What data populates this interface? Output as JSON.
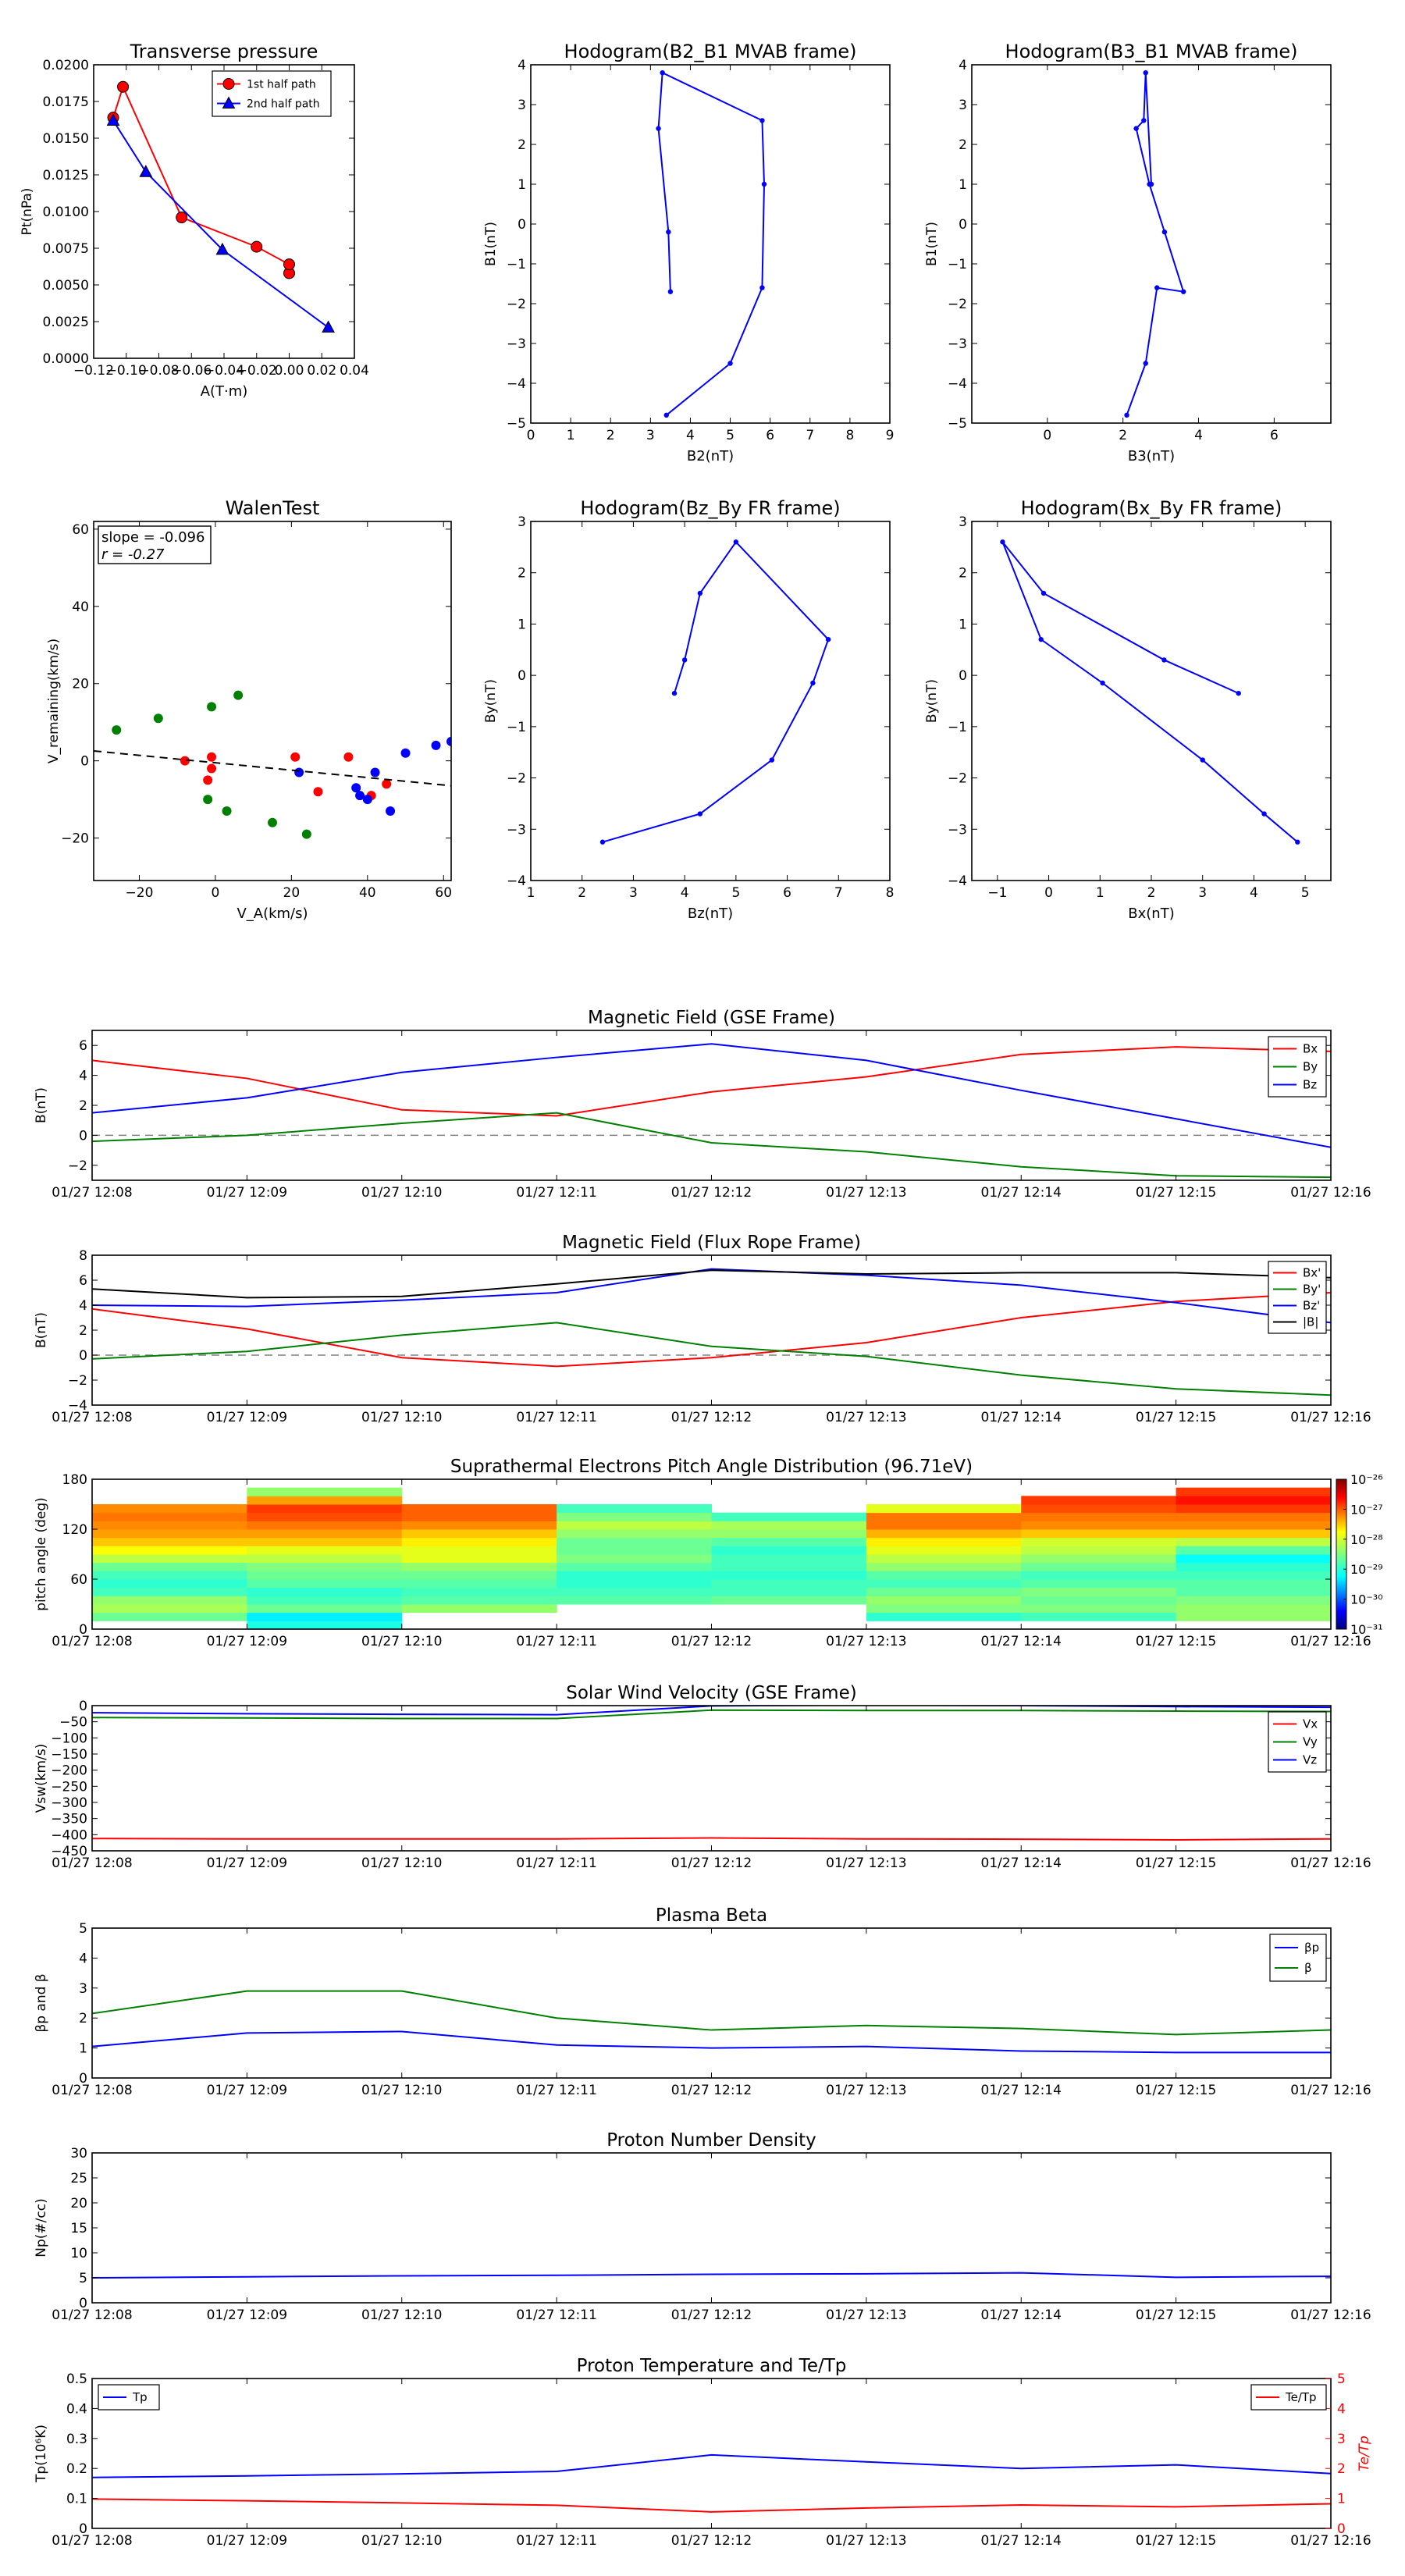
{
  "colors": {
    "red": "#ff0000",
    "green": "#008000",
    "blue": "#0000ff",
    "black": "#000000",
    "gray": "#808080",
    "tt_red": "#ff0000"
  },
  "chart_data": [
    {
      "id": "transverse",
      "type": "line",
      "title": "Transverse pressure",
      "xlabel": "A(T·m)",
      "ylabel": "Pt(nPa)",
      "xlim": [
        -0.12,
        0.04
      ],
      "ylim": [
        0,
        0.02
      ],
      "xticks": [
        -0.12,
        -0.1,
        -0.08,
        -0.06,
        -0.04,
        -0.02,
        0.0,
        0.02,
        0.04
      ],
      "xticklabels": [
        "−0.12",
        "−0.10",
        "−0.08",
        "−0.06",
        "−0.04",
        "−0.02",
        "0.00",
        "0.02",
        "0.04"
      ],
      "yticks": [
        0,
        0.0025,
        0.005,
        0.0075,
        0.01,
        0.0125,
        0.015,
        0.0175,
        0.02
      ],
      "yticklabels": [
        "0.0000",
        "0.0025",
        "0.0050",
        "0.0075",
        "0.0100",
        "0.0125",
        "0.0150",
        "0.0175",
        "0.0200"
      ],
      "legend": {
        "position": "top-center"
      },
      "series": [
        {
          "name": "1st half path",
          "color": "red",
          "marker": "circle",
          "x": [
            0.0,
            0.0,
            -0.02,
            -0.066,
            -0.102,
            -0.108
          ],
          "y": [
            0.0058,
            0.0064,
            0.0076,
            0.0096,
            0.0185,
            0.0164
          ]
        },
        {
          "name": "2nd half path",
          "color": "blue",
          "marker": "triangle",
          "x": [
            -0.108,
            -0.088,
            -0.041,
            0.024
          ],
          "y": [
            0.0162,
            0.0127,
            0.0074,
            0.0021
          ]
        }
      ]
    },
    {
      "id": "hodo_b2b1",
      "type": "line",
      "title": "Hodogram(B2_B1 MVAB frame)",
      "xlabel": "B2(nT)",
      "ylabel": "B1(nT)",
      "xlim": [
        0,
        9
      ],
      "ylim": [
        -5,
        4
      ],
      "xticks": [
        0,
        1,
        2,
        3,
        4,
        5,
        6,
        7,
        8,
        9
      ],
      "xticklabels": [
        "0",
        "1",
        "2",
        "3",
        "4",
        "5",
        "6",
        "7",
        "8",
        "9"
      ],
      "yticks": [
        -5,
        -4,
        -3,
        -2,
        -1,
        0,
        1,
        2,
        3,
        4
      ],
      "yticklabels": [
        "−5",
        "−4",
        "−3",
        "−2",
        "−1",
        "0",
        "1",
        "2",
        "3",
        "4"
      ],
      "series": [
        {
          "color": "blue",
          "marker": "dot",
          "x": [
            3.4,
            5.0,
            5.8,
            5.85,
            5.8,
            3.3,
            3.2,
            3.45,
            3.5
          ],
          "y": [
            -4.8,
            -3.5,
            -1.6,
            1.0,
            2.6,
            3.8,
            2.4,
            -0.2,
            -1.7
          ]
        }
      ]
    },
    {
      "id": "hodo_b3b1",
      "type": "line",
      "title": "Hodogram(B3_B1 MVAB frame)",
      "xlabel": "B3(nT)",
      "ylabel": "B1(nT)",
      "xlim": [
        -2,
        7.5
      ],
      "ylim": [
        -5,
        4
      ],
      "xticks": [
        0,
        2,
        4,
        6
      ],
      "xticklabels": [
        "0",
        "2",
        "4",
        "6"
      ],
      "yticks": [
        -5,
        -4,
        -3,
        -2,
        -1,
        0,
        1,
        2,
        3,
        4
      ],
      "yticklabels": [
        "−5",
        "−4",
        "−3",
        "−2",
        "−1",
        "0",
        "1",
        "2",
        "3",
        "4"
      ],
      "series": [
        {
          "color": "blue",
          "marker": "dot",
          "x": [
            2.1,
            2.6,
            2.9,
            3.6,
            3.1,
            2.7,
            2.35,
            2.55,
            2.6,
            2.75
          ],
          "y": [
            -4.8,
            -3.5,
            -1.6,
            -1.7,
            -0.2,
            1.0,
            2.4,
            2.6,
            3.8,
            1.0
          ]
        }
      ]
    },
    {
      "id": "walen",
      "type": "scatter",
      "title": "WalenTest",
      "xlabel": "V_A(km/s)",
      "ylabel": "V_remaining(km/s)",
      "xlim": [
        -32,
        62
      ],
      "ylim": [
        -31,
        62
      ],
      "xticks": [
        -20,
        0,
        20,
        40,
        60
      ],
      "xticklabels": [
        "−20",
        "0",
        "20",
        "40",
        "60"
      ],
      "yticks": [
        -20,
        0,
        20,
        40,
        60
      ],
      "yticklabels": [
        "−20",
        "0",
        "20",
        "40",
        "60"
      ],
      "annotation": {
        "slope": "slope = -0.096",
        "r": "r = -0.27"
      },
      "fit": {
        "slope": -0.096,
        "intercept": -0.5
      },
      "series": [
        {
          "color": "green",
          "x": [
            -26,
            -15,
            -1,
            6,
            -2,
            3,
            15,
            24
          ],
          "y": [
            8,
            11,
            14,
            17,
            -10,
            -13,
            -16,
            -19
          ]
        },
        {
          "color": "red",
          "x": [
            -8,
            -1,
            -1,
            -2,
            21,
            27,
            35,
            41,
            45
          ],
          "y": [
            0,
            1,
            -2,
            -5,
            1,
            -8,
            1,
            -9,
            -6
          ]
        },
        {
          "color": "blue",
          "x": [
            22,
            37,
            38,
            40,
            42,
            46,
            50,
            58,
            62
          ],
          "y": [
            -3,
            -7,
            -9,
            -10,
            -3,
            -13,
            2,
            4,
            5
          ]
        }
      ]
    },
    {
      "id": "hodo_bzby",
      "type": "line",
      "title": "Hodogram(Bz_By FR frame)",
      "xlabel": "Bz(nT)",
      "ylabel": "By(nT)",
      "xlim": [
        1,
        8
      ],
      "ylim": [
        -4,
        3
      ],
      "xticks": [
        1,
        2,
        3,
        4,
        5,
        6,
        7,
        8
      ],
      "xticklabels": [
        "1",
        "2",
        "3",
        "4",
        "5",
        "6",
        "7",
        "8"
      ],
      "yticks": [
        -4,
        -3,
        -2,
        -1,
        0,
        1,
        2,
        3
      ],
      "yticklabels": [
        "−4",
        "−3",
        "−2",
        "−1",
        "0",
        "1",
        "2",
        "3"
      ],
      "series": [
        {
          "color": "blue",
          "marker": "dot",
          "x": [
            2.4,
            4.3,
            5.7,
            6.5,
            6.8,
            5.0,
            4.3,
            4.0,
            3.8
          ],
          "y": [
            -3.25,
            -2.7,
            -1.65,
            -0.15,
            0.7,
            2.6,
            1.6,
            0.3,
            -0.35
          ]
        }
      ]
    },
    {
      "id": "hodo_bxby",
      "type": "line",
      "title": "Hodogram(Bx_By FR frame)",
      "xlabel": "Bx(nT)",
      "ylabel": "By(nT)",
      "xlim": [
        -1.5,
        5.5
      ],
      "ylim": [
        -4,
        3
      ],
      "xticks": [
        -1,
        0,
        1,
        2,
        3,
        4,
        5
      ],
      "xticklabels": [
        "−1",
        "0",
        "1",
        "2",
        "3",
        "4",
        "5"
      ],
      "yticks": [
        -4,
        -3,
        -2,
        -1,
        0,
        1,
        2,
        3
      ],
      "yticklabels": [
        "−4",
        "−3",
        "−2",
        "−1",
        "0",
        "1",
        "2",
        "3"
      ],
      "series": [
        {
          "color": "blue",
          "marker": "dot",
          "x": [
            4.85,
            4.2,
            3.0,
            1.05,
            -0.15,
            -0.9,
            -0.1,
            2.25,
            3.7
          ],
          "y": [
            -3.25,
            -2.7,
            -1.65,
            -0.15,
            0.7,
            2.6,
            1.6,
            0.3,
            -0.35
          ]
        }
      ]
    },
    {
      "id": "mag_gse",
      "type": "line",
      "title": "Magnetic Field (GSE Frame)",
      "ylabel": "B(nT)",
      "ylim": [
        -3,
        7
      ],
      "yticks": [
        -2,
        0,
        2,
        4,
        6
      ],
      "yticklabels": [
        "−2",
        "0",
        "2",
        "4",
        "6"
      ],
      "hline": 0,
      "legend": {
        "position": "top-right"
      },
      "series": [
        {
          "name": "Bx",
          "color": "red",
          "values": [
            5.0,
            3.8,
            1.7,
            1.3,
            2.9,
            3.9,
            5.4,
            5.9,
            5.6
          ]
        },
        {
          "name": "By",
          "color": "green",
          "values": [
            -0.4,
            0.0,
            0.8,
            1.5,
            -0.5,
            -1.1,
            -2.1,
            -2.7,
            -2.8
          ]
        },
        {
          "name": "Bz",
          "color": "blue",
          "values": [
            1.5,
            2.5,
            4.2,
            5.2,
            6.1,
            5.0,
            3.0,
            1.1,
            -0.8
          ]
        }
      ]
    },
    {
      "id": "mag_fr",
      "type": "line",
      "title": "Magnetic Field (Flux Rope Frame)",
      "ylabel": "B(nT)",
      "ylim": [
        -4,
        8
      ],
      "yticks": [
        -4,
        -2,
        0,
        2,
        4,
        6,
        8
      ],
      "yticklabels": [
        "−4",
        "−2",
        "0",
        "2",
        "4",
        "6",
        "8"
      ],
      "hline": 0,
      "legend": {
        "position": "top-right"
      },
      "series": [
        {
          "name": "Bx'",
          "color": "red",
          "values": [
            3.7,
            2.1,
            -0.2,
            -0.9,
            -0.2,
            1.0,
            3.0,
            4.3,
            5.0
          ]
        },
        {
          "name": "By'",
          "color": "green",
          "values": [
            -0.3,
            0.3,
            1.6,
            2.6,
            0.7,
            -0.1,
            -1.6,
            -2.7,
            -3.2
          ]
        },
        {
          "name": "Bz'",
          "color": "blue",
          "values": [
            4.0,
            3.9,
            4.4,
            5.0,
            6.9,
            6.4,
            5.6,
            4.2,
            2.6
          ]
        },
        {
          "name": "|B|",
          "color": "black",
          "values": [
            5.3,
            4.6,
            4.7,
            5.7,
            6.8,
            6.5,
            6.6,
            6.6,
            6.2
          ]
        }
      ]
    },
    {
      "id": "pad",
      "type": "heatmap",
      "title": "Suprathermal Electrons Pitch Angle Distribution (96.71eV)",
      "ylabel": "pitch angle (deg)",
      "ylim": [
        0,
        180
      ],
      "yticks": [
        0,
        60,
        120,
        180
      ],
      "yticklabels": [
        "0",
        "60",
        "120",
        "180"
      ],
      "colorbar": {
        "labels": [
          "10⁻²⁶",
          "10⁻²⁷",
          "10⁻²⁸",
          "10⁻²⁹",
          "10⁻³⁰",
          "10⁻³¹"
        ],
        "scale": "log",
        "range": [
          -31,
          -26
        ]
      },
      "bins_pitch": [
        0,
        10,
        20,
        30,
        40,
        50,
        60,
        70,
        80,
        90,
        100,
        110,
        120,
        130,
        140,
        150,
        160,
        170,
        180
      ],
      "values": [
        [
          null,
          -28.6,
          -28.3,
          -28.4,
          -28.8,
          -28.9,
          -28.8,
          -28.6,
          -28.2,
          -27.9,
          -27.6,
          -27.4,
          -27.3,
          -27.2,
          -27.3,
          null,
          null,
          null
        ],
        [
          -29.0,
          -29.2,
          -28.6,
          -28.8,
          -28.9,
          -28.7,
          -28.6,
          -28.5,
          -28.2,
          -28.0,
          -27.6,
          -27.4,
          -27.2,
          -27.0,
          -26.9,
          -27.4,
          -28.4,
          null
        ],
        [
          null,
          null,
          -28.4,
          -28.7,
          -28.8,
          -28.7,
          -28.6,
          -28.4,
          -28.0,
          -28.0,
          -27.8,
          -27.6,
          -27.3,
          -27.1,
          -27.1,
          null,
          null,
          null
        ],
        [
          null,
          null,
          null,
          -28.7,
          -28.8,
          -28.9,
          -28.9,
          -28.7,
          -28.5,
          -28.6,
          -28.6,
          -28.4,
          -28.2,
          -28.5,
          -28.8,
          null,
          null,
          null
        ],
        [
          null,
          null,
          null,
          -28.6,
          -28.8,
          -28.8,
          -28.9,
          -28.8,
          -28.8,
          -28.9,
          -28.7,
          -28.4,
          -28.3,
          -28.8,
          null,
          null,
          null,
          null
        ],
        [
          null,
          -28.9,
          -28.5,
          -28.4,
          -28.6,
          -28.8,
          -28.7,
          -28.4,
          -28.2,
          -28.0,
          -27.8,
          -27.5,
          -27.2,
          -27.2,
          -28.0,
          null,
          null,
          null
        ],
        [
          null,
          -28.8,
          -28.5,
          -28.6,
          -28.5,
          -28.7,
          -28.8,
          -28.6,
          -28.4,
          -28.2,
          -28.1,
          -27.6,
          -27.3,
          -27.2,
          -27.0,
          -26.9,
          null,
          null
        ],
        [
          null,
          -28.4,
          -28.4,
          -28.5,
          -28.7,
          -28.7,
          -28.8,
          -28.9,
          -29.1,
          -28.7,
          -28.2,
          -27.6,
          -27.3,
          -27.2,
          -26.9,
          -26.7,
          -26.9,
          null
        ]
      ]
    },
    {
      "id": "vsw",
      "type": "line",
      "title": "Solar Wind Velocity (GSE Frame)",
      "ylabel": "Vsw(km/s)",
      "ylim": [
        -450,
        0
      ],
      "yticks": [
        -450,
        -400,
        -350,
        -300,
        -250,
        -200,
        -150,
        -100,
        -50,
        0
      ],
      "yticklabels": [
        "−450",
        "−400",
        "−350",
        "−300",
        "−250",
        "−200",
        "−150",
        "−100",
        "−50",
        "0"
      ],
      "legend": {
        "position": "top-right"
      },
      "series": [
        {
          "name": "Vx",
          "color": "red",
          "values": [
            -412,
            -413,
            -413,
            -413,
            -410,
            -413,
            -414,
            -416,
            -413
          ]
        },
        {
          "name": "Vy",
          "color": "green",
          "values": [
            -37,
            -38,
            -40,
            -40,
            -14,
            -15,
            -15,
            -17,
            -18
          ]
        },
        {
          "name": "Vz",
          "color": "blue",
          "values": [
            -22,
            -25,
            -27,
            -28,
            -1,
            2,
            0,
            -3,
            -5
          ]
        }
      ]
    },
    {
      "id": "beta",
      "type": "line",
      "title": "Plasma Beta",
      "ylabel": "βp and β",
      "ylim": [
        0,
        5
      ],
      "yticks": [
        0,
        1,
        2,
        3,
        4,
        5
      ],
      "yticklabels": [
        "0",
        "1",
        "2",
        "3",
        "4",
        "5"
      ],
      "legend": {
        "position": "top-right"
      },
      "series": [
        {
          "name": "βp",
          "color": "blue",
          "values": [
            1.05,
            1.5,
            1.55,
            1.1,
            1.0,
            1.05,
            0.9,
            0.85,
            0.85
          ]
        },
        {
          "name": "β",
          "color": "green",
          "values": [
            2.15,
            2.9,
            2.9,
            2.0,
            1.6,
            1.75,
            1.65,
            1.45,
            1.6
          ]
        }
      ]
    },
    {
      "id": "np",
      "type": "line",
      "title": "Proton Number Density",
      "ylabel": "Np(#/cc)",
      "ylim": [
        0,
        30
      ],
      "yticks": [
        0,
        5,
        10,
        15,
        20,
        25,
        30
      ],
      "yticklabels": [
        "0",
        "5",
        "10",
        "15",
        "20",
        "25",
        "30"
      ],
      "series": [
        {
          "name": "Np",
          "color": "blue",
          "values": [
            5.0,
            5.2,
            5.4,
            5.5,
            5.7,
            5.8,
            6.0,
            5.1,
            5.3
          ]
        }
      ]
    },
    {
      "id": "tp",
      "type": "line",
      "title": "Proton Temperature and Te/Tp",
      "ylabel": "Tp(10⁶K)",
      "ylim": [
        0,
        0.5
      ],
      "yticks": [
        0,
        0.1,
        0.2,
        0.3,
        0.4,
        0.5
      ],
      "yticklabels": [
        "0",
        "0.1",
        "0.2",
        "0.3",
        "0.4",
        "0.5"
      ],
      "y2label": "Te/Tp",
      "y2lim": [
        0,
        5
      ],
      "y2ticks": [
        0,
        1,
        2,
        3,
        4,
        5
      ],
      "y2ticklabels": [
        "0",
        "1",
        "2",
        "3",
        "4",
        "5"
      ],
      "series": [
        {
          "name": "Tp",
          "color": "blue",
          "axis": "left",
          "values": [
            0.17,
            0.175,
            0.182,
            0.19,
            0.245,
            0.222,
            0.2,
            0.212,
            0.183
          ]
        },
        {
          "name": "Te/Tp",
          "color": "red",
          "axis": "right",
          "values": [
            0.98,
            0.92,
            0.85,
            0.77,
            0.55,
            0.68,
            0.78,
            0.72,
            0.82
          ]
        }
      ]
    }
  ],
  "time_axis": {
    "ticklabels": [
      "01/27 12:08",
      "01/27 12:09",
      "01/27 12:10",
      "01/27 12:11",
      "01/27 12:12",
      "01/27 12:13",
      "01/27 12:14",
      "01/27 12:15",
      "01/27 12:16"
    ]
  }
}
